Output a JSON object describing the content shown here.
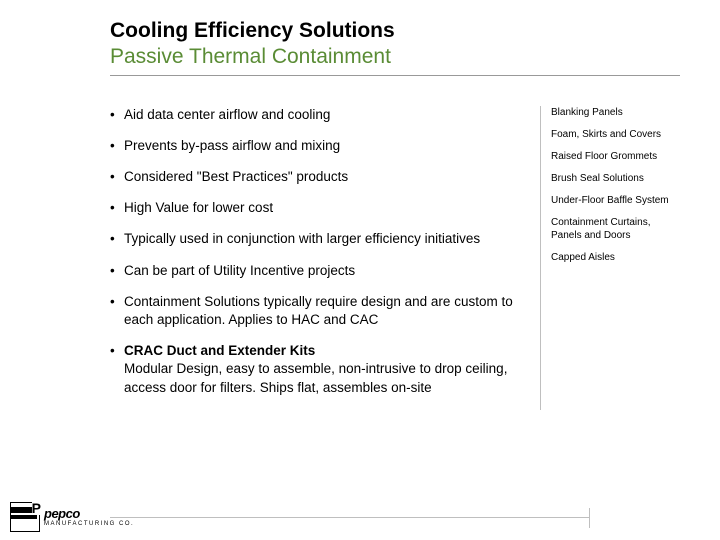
{
  "title": {
    "line1": "Cooling Efficiency Solutions",
    "line2": "Passive Thermal Containment"
  },
  "bullets": [
    {
      "text": "Aid data center airflow and cooling"
    },
    {
      "text": "Prevents by-pass airflow and mixing"
    },
    {
      "text": "Considered \"Best Practices\" products"
    },
    {
      "text": "High Value for lower cost"
    },
    {
      "text": "Typically used in conjunction with larger efficiency initiatives"
    },
    {
      "text": "Can be part of Utility Incentive projects"
    },
    {
      "text": "Containment Solutions typically require design and are custom to each application.  Applies to HAC and CAC"
    },
    {
      "lead": "CRAC Duct  and Extender Kits",
      "text": "Modular Design, easy to assemble, non-intrusive to drop ceiling, access door for filters.  Ships flat, assembles on-site"
    }
  ],
  "side_items": [
    "Blanking Panels",
    "Foam, Skirts and Covers",
    "Raised Floor Grommets",
    "Brush Seal Solutions",
    "Under-Floor Baffle System",
    "Containment Curtains, Panels and Doors",
    "Capped Aisles"
  ],
  "logo": {
    "brand": "pepco",
    "sub": "MANUFACTURING CO."
  },
  "colors": {
    "accent_green": "#5a8c35",
    "rule_gray": "#bfbfbf"
  }
}
